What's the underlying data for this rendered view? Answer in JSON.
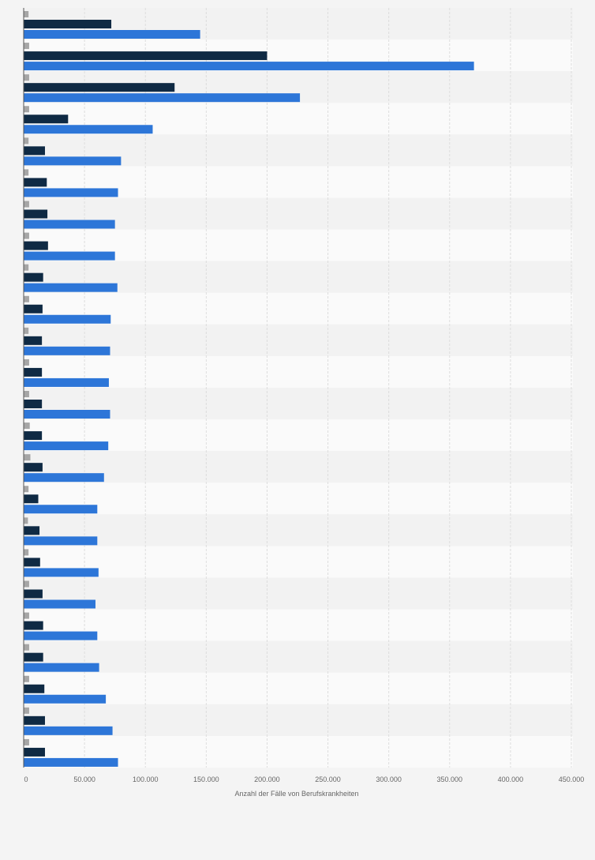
{
  "chart_data": {
    "type": "bar",
    "orientation": "horizontal",
    "title": "",
    "xlabel": "Anzahl der Fälle von Berufskrankheiten",
    "ylabel": "",
    "xlim": [
      0,
      450000
    ],
    "x_ticks": [
      0,
      50000,
      100000,
      150000,
      200000,
      250000,
      300000,
      350000,
      400000,
      450000
    ],
    "x_tick_labels": [
      "0",
      "50.000",
      "100.000",
      "150.000",
      "200.000",
      "250.000",
      "300.000",
      "350.000",
      "400.000",
      "450.000"
    ],
    "grid": true,
    "legend": "none",
    "categories": [
      "",
      "",
      "",
      "",
      "",
      "",
      "",
      "",
      "",
      "",
      "",
      "",
      "",
      "",
      "",
      "",
      "",
      "",
      "",
      "",
      "",
      "",
      "",
      ""
    ],
    "series": [
      {
        "color": "#a6a6a6",
        "values": [
          4000,
          4500,
          4500,
          4500,
          4000,
          4000,
          4500,
          4500,
          4000,
          4500,
          4000,
          4500,
          4500,
          5000,
          5500,
          4000,
          3500,
          4000,
          4500,
          4500,
          4500,
          4500,
          4500,
          4500
        ]
      },
      {
        "color": "#0f2a44",
        "values": [
          72000,
          200000,
          124000,
          36500,
          17500,
          19000,
          19500,
          20000,
          16000,
          15500,
          15000,
          15000,
          15000,
          15000,
          15500,
          12000,
          13000,
          13500,
          15500,
          16000,
          16000,
          17000,
          17500,
          17500
        ]
      },
      {
        "color": "#2d76d8",
        "values": [
          145000,
          370000,
          227000,
          106000,
          80000,
          77500,
          75000,
          75000,
          77000,
          71500,
          71000,
          70000,
          71000,
          69500,
          66000,
          60500,
          60500,
          61500,
          59000,
          60500,
          62000,
          67500,
          73000,
          77500
        ]
      }
    ]
  },
  "colors": {
    "background": "#f4f4f4",
    "band_light": "#fafafa",
    "band_dark": "#f2f2f2",
    "grid": "#dddddd",
    "axis": "#555555"
  }
}
